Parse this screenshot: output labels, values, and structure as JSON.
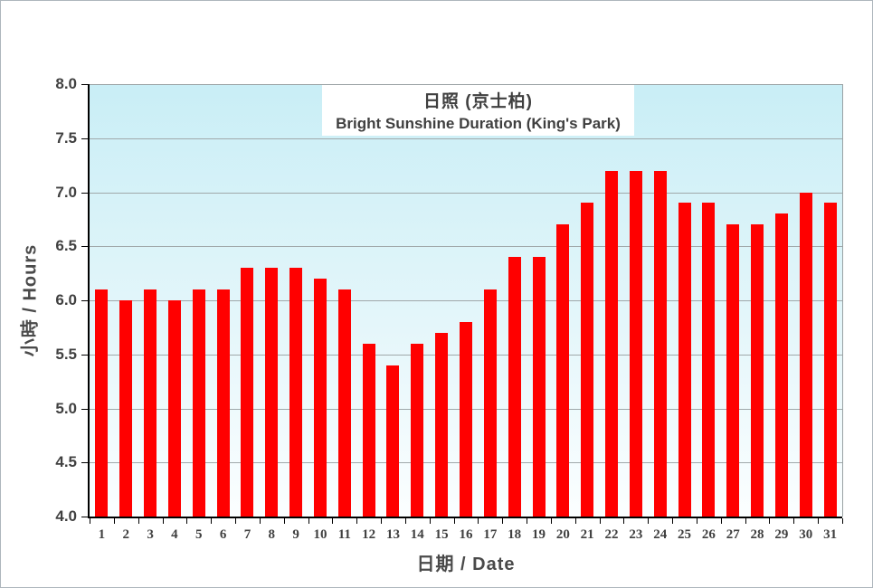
{
  "chart_data": {
    "type": "bar",
    "title_zh": "日照 (京士柏)",
    "title_en": "Bright Sunshine Duration (King's Park)",
    "xlabel": "日期 / Date",
    "ylabel": "小時 / Hours",
    "categories": [
      1,
      2,
      3,
      4,
      5,
      6,
      7,
      8,
      9,
      10,
      11,
      12,
      13,
      14,
      15,
      16,
      17,
      18,
      19,
      20,
      21,
      22,
      23,
      24,
      25,
      26,
      27,
      28,
      29,
      30,
      31
    ],
    "values": [
      6.1,
      6.0,
      6.1,
      6.0,
      6.1,
      6.1,
      6.3,
      6.3,
      6.3,
      6.2,
      6.1,
      5.6,
      5.4,
      5.6,
      5.7,
      5.8,
      6.1,
      6.4,
      6.4,
      6.7,
      6.9,
      7.2,
      7.2,
      7.2,
      6.9,
      6.9,
      6.7,
      6.7,
      6.8,
      7.0,
      6.9
    ],
    "ylim": [
      4.0,
      8.0
    ],
    "ytick_step": 0.5,
    "grid": true,
    "legend": "none",
    "bar_color": "#ff0000",
    "plot_bg_top": "#c9eef6",
    "plot_bg_bottom": "#ffffff",
    "grid_color": "#a0a8aa",
    "axis_color": "#000000",
    "text_color": "#404040"
  }
}
